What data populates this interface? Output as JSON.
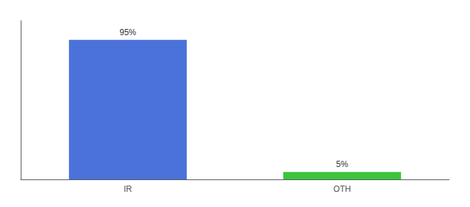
{
  "chart_data": {
    "type": "bar",
    "categories": [
      "IR",
      "OTH"
    ],
    "values": [
      95,
      5
    ],
    "value_labels": [
      "95%",
      "5%"
    ],
    "colors": [
      "#4B72D8",
      "#3DC43D"
    ],
    "ylim": [
      0,
      108
    ],
    "data_labels": true,
    "tick_labels": "x",
    "grid": false
  }
}
